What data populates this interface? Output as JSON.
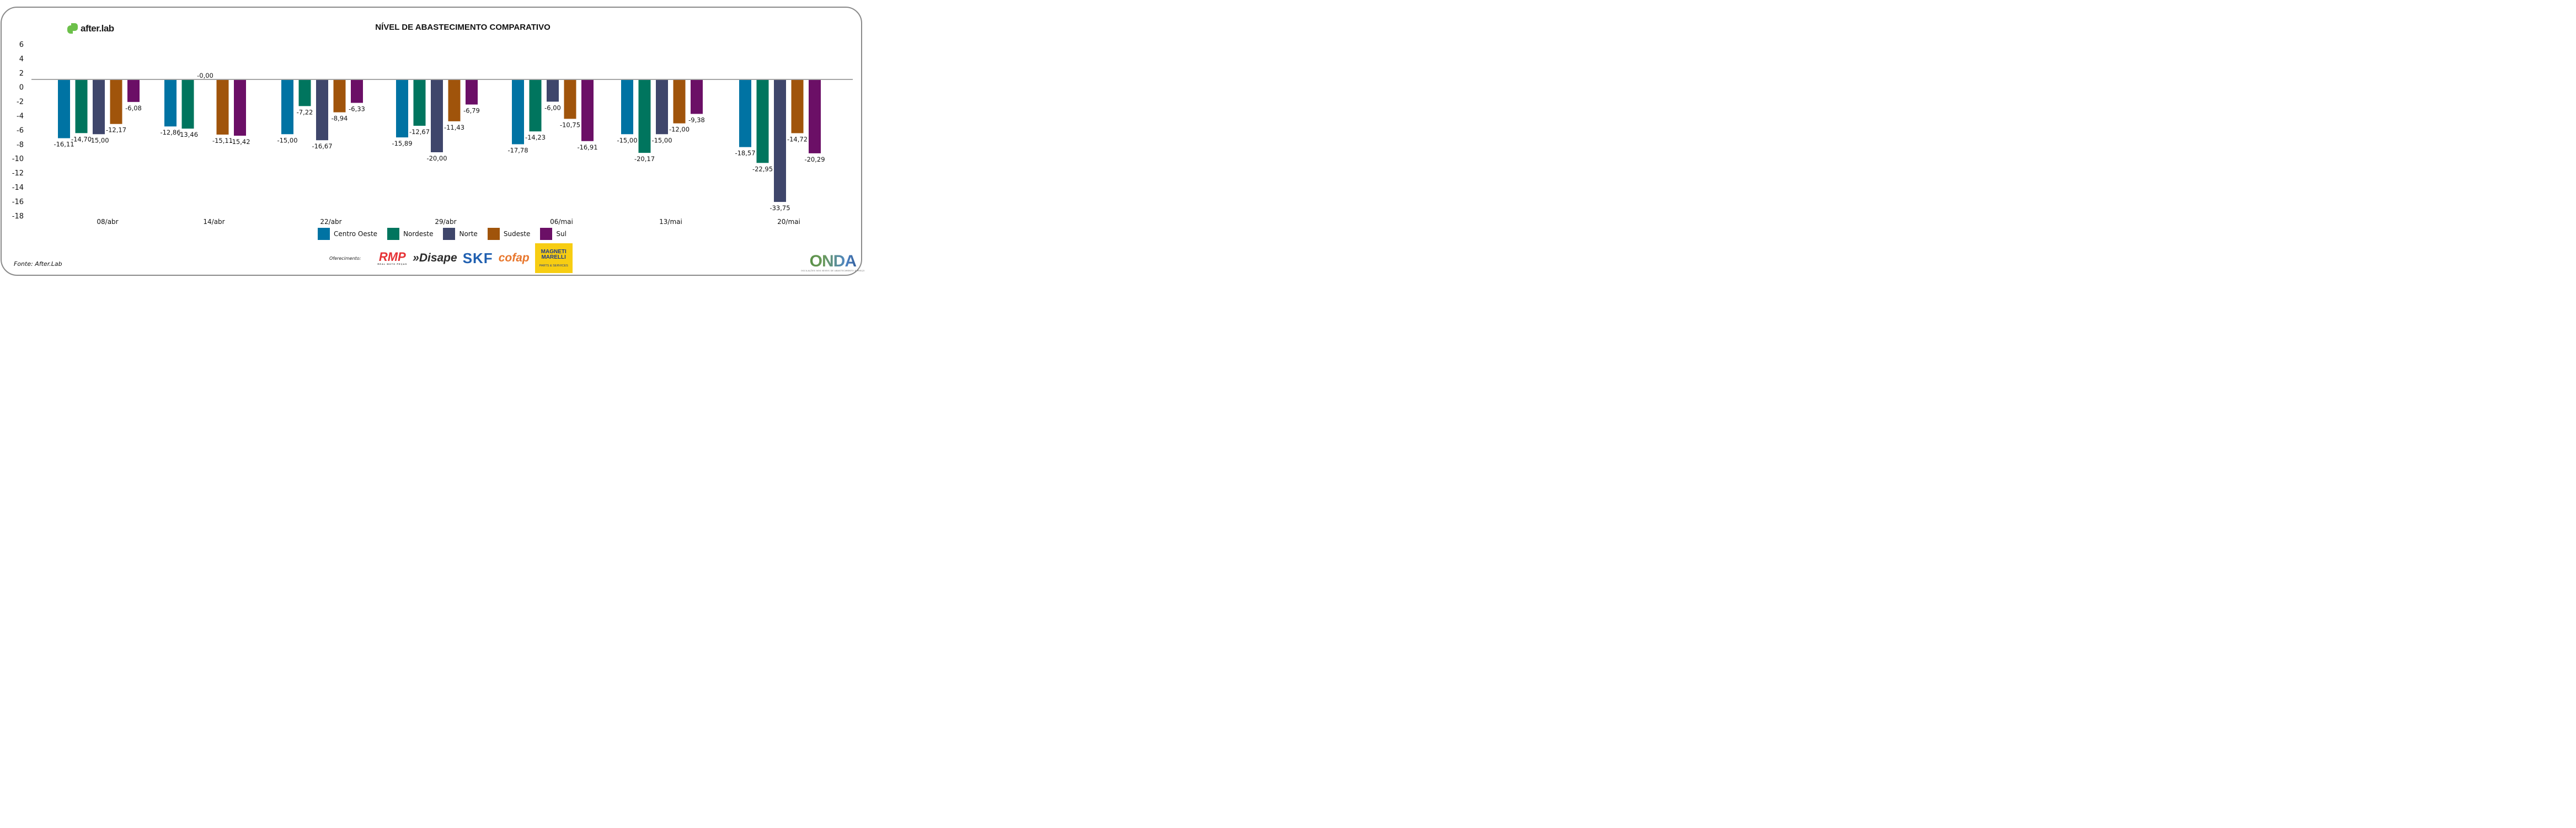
{
  "header": {
    "logo_text": "after.lab",
    "title": "NÍVEL DE ABASTECIMENTO COMPARATIVO"
  },
  "chart_data": {
    "type": "bar",
    "title": "NÍVEL DE ABASTECIMENTO COMPARATIVO",
    "xlabel": "",
    "ylabel": "",
    "yticks": [
      "6",
      "4",
      "2",
      "0",
      "-2",
      "-4",
      "-6",
      "-8",
      "-10",
      "-12",
      "-14",
      "-16",
      "-18"
    ],
    "ylim": [
      -18,
      6
    ],
    "grid": false,
    "legend_position": "bottom",
    "categories": [
      "08/abr",
      "14/abr",
      "22/abr",
      "29/abr",
      "06/mai",
      "13/mai",
      "20/mai"
    ],
    "series": [
      {
        "name": "Centro Oeste",
        "color": "#0073a3",
        "values": [
          -16.11,
          -12.86,
          -15.0,
          -15.89,
          -17.78,
          -15.0,
          -18.57
        ],
        "labels": [
          "-16,11",
          "-12,86",
          "-15,00",
          "-15,89",
          "-17,78",
          "-15,00",
          "-18,57"
        ]
      },
      {
        "name": "Nordeste",
        "color": "#00755e",
        "values": [
          -14.7,
          -13.46,
          -7.22,
          -12.67,
          -14.23,
          -20.17,
          -22.95
        ],
        "labels": [
          "-14,70",
          "-13,46",
          "-7,22",
          "-12,67",
          "-14,23",
          "-20,17",
          "-22,95"
        ]
      },
      {
        "name": "Norte",
        "color": "#3f466b",
        "values": [
          -15.0,
          0.0,
          -16.67,
          -20.0,
          -6.0,
          -15.0,
          -33.75
        ],
        "labels": [
          "-15,00",
          "-0,00",
          "-16,67",
          "-20,00",
          "-6,00",
          "-15,00",
          "-33,75"
        ]
      },
      {
        "name": "Sudeste",
        "color": "#a0540b",
        "values": [
          -12.17,
          -15.11,
          -8.94,
          -11.43,
          -10.75,
          -12.0,
          -14.72
        ],
        "labels": [
          "-12,17",
          "-15,11",
          "-8,94",
          "-11,43",
          "-10,75",
          "-12,00",
          "-14,72"
        ]
      },
      {
        "name": "Sul",
        "color": "#6b0f66",
        "values": [
          -6.08,
          -15.42,
          -6.33,
          -6.79,
          -16.91,
          -9.38,
          -20.29
        ],
        "labels": [
          "-6,08",
          "-15,42",
          "-6,33",
          "-6,79",
          "-16,91",
          "-9,38",
          "-20,29"
        ]
      }
    ]
  },
  "footer": {
    "source": "Fonte: After.Lab",
    "sponsor_label": "Oferecimento:",
    "sponsors": {
      "rmp": "RMP",
      "rmp_sub": "REAL MOTO PEÇAS",
      "disape": "»Disape",
      "skf": "SKF",
      "cofap": "cofap",
      "marelli_line1": "MAGNETI",
      "marelli_line2": "MARELLI",
      "marelli_sub": "PARTS & SERVICES"
    },
    "onda": "ONDA",
    "onda_tagline": "OSCILAÇÕES NOS NÍVEIS DE ABASTECIMENTO E PREÇO"
  }
}
